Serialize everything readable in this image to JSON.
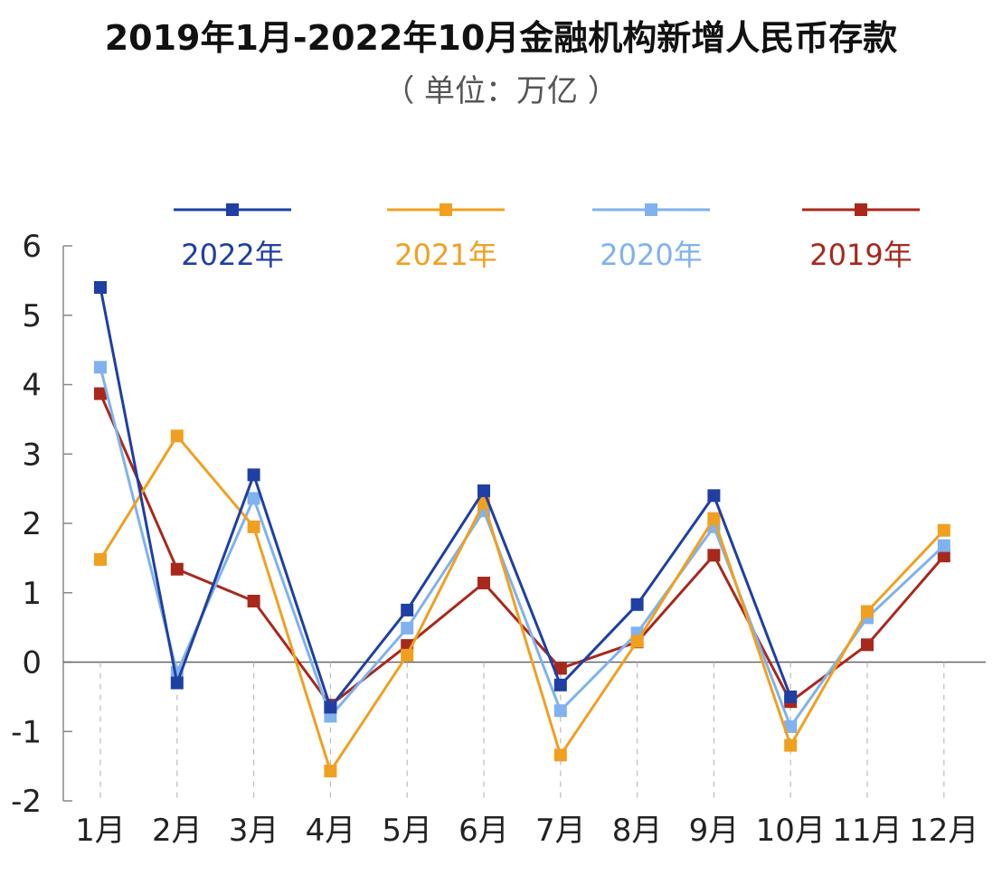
{
  "chart_data": {
    "type": "line",
    "title": "2019年1月-2022年10月金融机构新增人民币存款",
    "subtitle": "（ 单位：万亿 ）",
    "categories": [
      "1月",
      "2月",
      "3月",
      "4月",
      "5月",
      "6月",
      "7月",
      "8月",
      "9月",
      "10月",
      "11月",
      "12月"
    ],
    "ylim": [
      -2,
      6
    ],
    "yticks": [
      "-2",
      "-1",
      "0",
      "1",
      "2",
      "3",
      "4",
      "5",
      "6"
    ],
    "grid": false,
    "legend_position": "top",
    "series": [
      {
        "name": "2022年",
        "color": "#1f3fa3",
        "values": [
          5.4,
          -0.3,
          2.7,
          -0.65,
          0.75,
          2.47,
          -0.33,
          0.83,
          2.4,
          -0.5,
          null,
          null
        ]
      },
      {
        "name": "2021年",
        "color": "#f0a020",
        "values": [
          1.48,
          3.26,
          1.95,
          -1.57,
          0.1,
          2.3,
          -1.34,
          0.3,
          2.07,
          -1.2,
          0.73,
          1.9
        ]
      },
      {
        "name": "2020年",
        "color": "#7fb2ee",
        "values": [
          4.25,
          -0.15,
          2.36,
          -0.78,
          0.49,
          2.18,
          -0.7,
          0.42,
          1.95,
          -0.93,
          0.64,
          1.68
        ]
      },
      {
        "name": "2019年",
        "color": "#a8281c",
        "values": [
          3.87,
          1.34,
          0.88,
          -0.62,
          0.24,
          1.14,
          -0.09,
          0.29,
          1.54,
          -0.57,
          0.25,
          1.53
        ]
      }
    ]
  }
}
